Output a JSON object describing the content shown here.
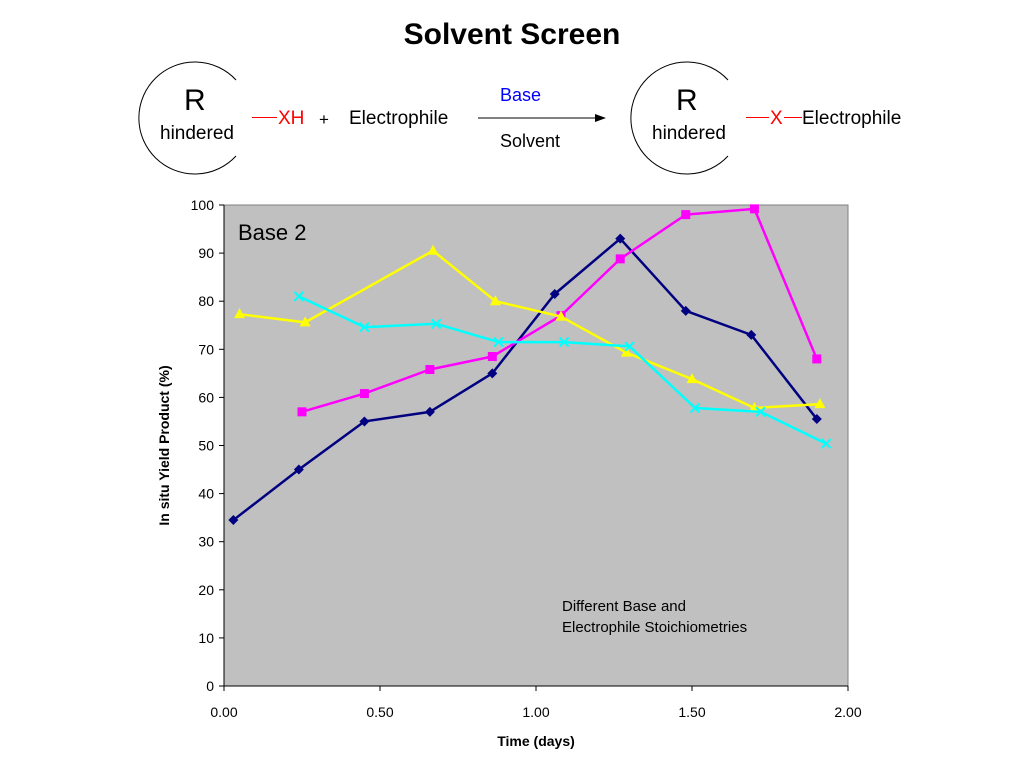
{
  "page": {
    "title": "Solvent Screen"
  },
  "scheme": {
    "reactant_r": "R",
    "reactant_hindered": "hindered",
    "reactant_group": "XH",
    "plus": "+",
    "electrophile": "Electrophile",
    "arrow_top": "Base",
    "arrow_bottom": "Solvent",
    "product_r": "R",
    "product_hindered": "hindered",
    "product_group": "X",
    "product_electrophile": "Electrophile"
  },
  "chart_data": {
    "type": "line",
    "title": "",
    "panel_label": "Base 2",
    "annotation": [
      "Different Base and",
      "Electrophile Stoichiometries"
    ],
    "xlabel": "Time (days)",
    "ylabel": "In situ Yield Product (%)",
    "xlim": [
      0,
      2
    ],
    "ylim": [
      0,
      100
    ],
    "xticks": [
      0,
      0.5,
      1,
      1.5,
      2
    ],
    "xtick_labels": [
      "0.00",
      "0.50",
      "1.00",
      "1.50",
      "2.00"
    ],
    "yticks": [
      0,
      10,
      20,
      30,
      40,
      50,
      60,
      70,
      80,
      90,
      100
    ],
    "ytick_labels": [
      "0",
      "10",
      "20",
      "30",
      "40",
      "50",
      "60",
      "70",
      "80",
      "90",
      "100"
    ],
    "grid": false,
    "plot_background": "#c0c0c0",
    "series": [
      {
        "color": "#000080",
        "marker": "diamond",
        "points": [
          [
            0.03,
            34.5
          ],
          [
            0.24,
            45
          ],
          [
            0.45,
            55
          ],
          [
            0.66,
            57
          ],
          [
            0.86,
            65
          ],
          [
            1.06,
            81.5
          ],
          [
            1.27,
            93
          ],
          [
            1.48,
            78
          ],
          [
            1.69,
            73
          ],
          [
            1.9,
            55.5
          ]
        ]
      },
      {
        "color": "#ff00ff",
        "marker": "square",
        "points": [
          [
            0.25,
            57
          ],
          [
            0.45,
            60.8
          ],
          [
            0.66,
            65.8
          ],
          [
            0.86,
            68.5
          ],
          [
            1.08,
            77
          ],
          [
            1.27,
            88.8
          ],
          [
            1.48,
            98
          ],
          [
            1.7,
            99.2
          ],
          [
            1.9,
            68
          ]
        ]
      },
      {
        "color": "#ffff00",
        "marker": "triangle",
        "points": [
          [
            0.05,
            77.3
          ],
          [
            0.26,
            75.6
          ],
          [
            0.67,
            90.5
          ],
          [
            0.87,
            80
          ],
          [
            1.08,
            76.8
          ],
          [
            1.29,
            69.3
          ],
          [
            1.5,
            63.8
          ],
          [
            1.7,
            57.8
          ],
          [
            1.91,
            58.6
          ]
        ]
      },
      {
        "color": "#00ffff",
        "marker": "x",
        "points": [
          [
            0.24,
            81
          ],
          [
            0.45,
            74.6
          ],
          [
            0.68,
            75.3
          ],
          [
            0.88,
            71.5
          ],
          [
            1.09,
            71.5
          ],
          [
            1.3,
            70.6
          ],
          [
            1.51,
            57.8
          ],
          [
            1.72,
            57
          ],
          [
            1.93,
            50.4
          ]
        ]
      }
    ]
  }
}
